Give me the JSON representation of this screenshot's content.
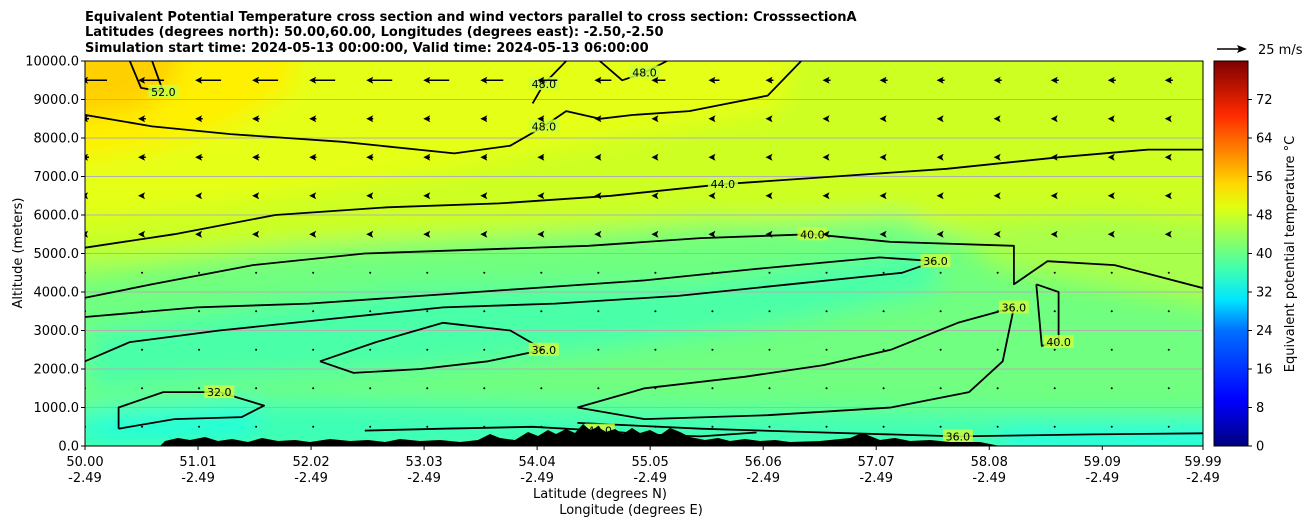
{
  "chart_data": {
    "type": "contour",
    "title_lines": [
      "Equivalent Potential Temperature cross section and wind vectors parallel to cross section: CrosssectionA",
      "Latitudes (degrees north): 50.00,60.00, Longitudes (degrees east): -2.50,-2.50",
      "Simulation start time: 2024-05-13 00:00:00, Valid time: 2024-05-13 06:00:00"
    ],
    "ylabel": "Altitude (meters)",
    "xlabel_lat": "Latitude (degrees N)",
    "xlabel_lon": "Longitude (degrees E)",
    "ylim": [
      0,
      10000
    ],
    "yticks": [
      "0.0",
      "1000.0",
      "2000.0",
      "3000.0",
      "4000.0",
      "5000.0",
      "6000.0",
      "7000.0",
      "8000.0",
      "9000.0",
      "10000.0"
    ],
    "xlim": [
      50.0,
      59.99
    ],
    "xticks": [
      {
        "lat": "50.00",
        "lon": "-2.49"
      },
      {
        "lat": "51.01",
        "lon": "-2.49"
      },
      {
        "lat": "52.02",
        "lon": "-2.49"
      },
      {
        "lat": "53.03",
        "lon": "-2.49"
      },
      {
        "lat": "54.04",
        "lon": "-2.49"
      },
      {
        "lat": "55.05",
        "lon": "-2.49"
      },
      {
        "lat": "56.06",
        "lon": "-2.49"
      },
      {
        "lat": "57.07",
        "lon": "-2.49"
      },
      {
        "lat": "58.08",
        "lon": "-2.49"
      },
      {
        "lat": "59.09",
        "lon": "-2.49"
      },
      {
        "lat": "59.99",
        "lon": "-2.49"
      }
    ],
    "grid": "horizontal",
    "colorbar": {
      "label": "Equivalent potential temperature $^\\circ$C",
      "label_display": "Equivalent potential temperature °C",
      "range": [
        0,
        80
      ],
      "ticks": [
        "0",
        "8",
        "16",
        "24",
        "32",
        "40",
        "48",
        "56",
        "64",
        "72"
      ]
    },
    "quiver_key": {
      "label": "25 m/s",
      "magnitude": 25
    },
    "contours": [
      {
        "level": 32,
        "label": "32.0",
        "points": [
          [
            50.3,
            450
          ],
          [
            50.8,
            700
          ],
          [
            51.4,
            750
          ],
          [
            51.6,
            1050
          ],
          [
            51.2,
            1400
          ],
          [
            50.7,
            1400
          ],
          [
            50.3,
            1000
          ],
          [
            50.3,
            450
          ]
        ]
      },
      {
        "level": 36,
        "label": "36.0",
        "points": [
          [
            50.0,
            2200
          ],
          [
            50.4,
            2700
          ],
          [
            51.2,
            3000
          ],
          [
            52.2,
            3300
          ],
          [
            53.2,
            3600
          ],
          [
            54.2,
            3700
          ],
          [
            55.3,
            3900
          ],
          [
            56.3,
            4200
          ],
          [
            57.3,
            4500
          ],
          [
            57.6,
            4800
          ],
          [
            57.1,
            4900
          ],
          [
            56.0,
            4600
          ],
          [
            55.0,
            4300
          ],
          [
            54.0,
            4100
          ],
          [
            53.0,
            3900
          ],
          [
            52.0,
            3700
          ],
          [
            51.0,
            3600
          ],
          [
            50.0,
            3350
          ]
        ]
      },
      {
        "level": 36,
        "label": "36.0",
        "points": [
          [
            52.1,
            2200
          ],
          [
            52.6,
            2700
          ],
          [
            53.2,
            3200
          ],
          [
            53.8,
            3000
          ],
          [
            54.1,
            2500
          ],
          [
            53.6,
            2200
          ],
          [
            53.0,
            2000
          ],
          [
            52.4,
            1900
          ],
          [
            52.1,
            2200
          ]
        ]
      },
      {
        "level": 36,
        "label": "36.0",
        "points": [
          [
            54.4,
            1000
          ],
          [
            55.0,
            1500
          ],
          [
            55.9,
            1800
          ],
          [
            56.6,
            2100
          ],
          [
            57.2,
            2500
          ],
          [
            57.8,
            3200
          ],
          [
            58.3,
            3600
          ],
          [
            58.2,
            2200
          ],
          [
            57.9,
            1400
          ],
          [
            57.2,
            1000
          ],
          [
            56.1,
            800
          ],
          [
            55.0,
            700
          ],
          [
            54.4,
            1000
          ]
        ]
      },
      {
        "level": 36,
        "label": "36.0",
        "points": [
          [
            54.4,
            600
          ],
          [
            55.5,
            450
          ],
          [
            56.6,
            350
          ],
          [
            57.8,
            250
          ],
          [
            59.0,
            300
          ],
          [
            59.99,
            330
          ]
        ]
      },
      {
        "level": 40,
        "label": "40.0",
        "points": [
          [
            50.0,
            3850
          ],
          [
            50.6,
            4200
          ],
          [
            51.5,
            4700
          ],
          [
            52.5,
            5000
          ],
          [
            53.5,
            5100
          ],
          [
            54.5,
            5200
          ],
          [
            55.5,
            5400
          ],
          [
            56.5,
            5500
          ],
          [
            57.2,
            5300
          ],
          [
            58.3,
            5200
          ],
          [
            58.3,
            4200
          ],
          [
            58.6,
            4800
          ],
          [
            59.2,
            4700
          ],
          [
            59.99,
            4100
          ]
        ]
      },
      {
        "level": 40,
        "label": "40.0",
        "points": [
          [
            52.5,
            400
          ],
          [
            53.2,
            450
          ],
          [
            54.0,
            500
          ],
          [
            54.6,
            400
          ],
          [
            55.0,
            300
          ],
          [
            55.5,
            250
          ],
          [
            56.0,
            350
          ]
        ]
      },
      {
        "level": 40,
        "label": "40.0",
        "points": [
          [
            58.5,
            4200
          ],
          [
            58.7,
            4000
          ],
          [
            58.7,
            2700
          ],
          [
            58.55,
            2600
          ],
          [
            58.5,
            4200
          ]
        ]
      },
      {
        "level": 44,
        "label": "44.0",
        "points": [
          [
            50.0,
            5150
          ],
          [
            50.8,
            5500
          ],
          [
            51.7,
            6000
          ],
          [
            52.7,
            6200
          ],
          [
            53.7,
            6300
          ],
          [
            54.7,
            6500
          ],
          [
            55.7,
            6800
          ],
          [
            56.7,
            7000
          ],
          [
            57.7,
            7200
          ],
          [
            58.7,
            7500
          ],
          [
            59.5,
            7700
          ],
          [
            59.99,
            7700
          ]
        ]
      },
      {
        "level": 48,
        "label": "48.0",
        "points": [
          [
            50.0,
            8600
          ],
          [
            50.6,
            8300
          ],
          [
            51.3,
            8100
          ],
          [
            52.3,
            7900
          ],
          [
            53.3,
            7600
          ],
          [
            53.8,
            7800
          ],
          [
            54.1,
            8300
          ],
          [
            54.3,
            8700
          ],
          [
            54.6,
            8500
          ],
          [
            54.9,
            8600
          ],
          [
            55.4,
            8700
          ],
          [
            56.1,
            9100
          ],
          [
            56.4,
            10000
          ]
        ]
      },
      {
        "level": 48,
        "label": "48.0",
        "points": [
          [
            54.0,
            8900
          ],
          [
            54.1,
            9400
          ],
          [
            54.3,
            10000
          ]
        ]
      },
      {
        "level": 48,
        "label": "48.0",
        "points": [
          [
            54.6,
            10000
          ],
          [
            54.8,
            9500
          ],
          [
            55.0,
            9700
          ],
          [
            55.2,
            10000
          ]
        ]
      },
      {
        "level": 52,
        "label": "52.0",
        "points": [
          [
            50.4,
            10000
          ],
          [
            50.5,
            9300
          ],
          [
            50.7,
            9200
          ],
          [
            50.6,
            10000
          ]
        ]
      }
    ]
  }
}
